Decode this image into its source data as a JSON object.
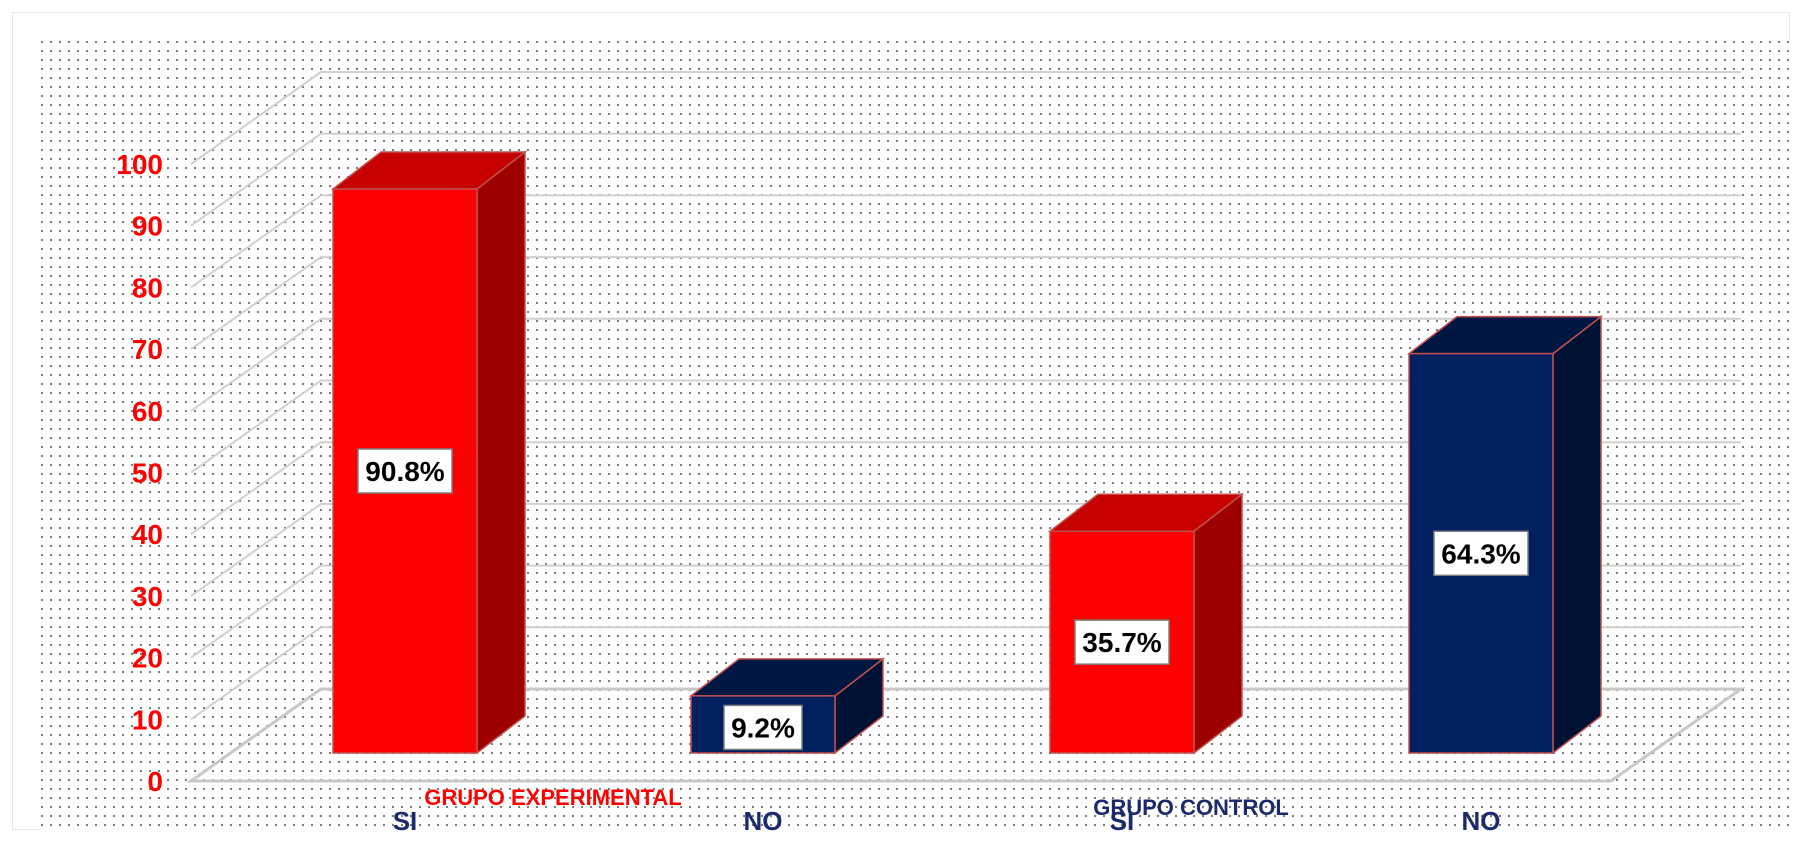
{
  "chart_data": {
    "type": "bar",
    "categories": [
      "SI",
      "NO",
      "SI",
      "NO"
    ],
    "groups": [
      {
        "label": "GRUPO EXPERIMENTAL",
        "color": "#ff0000"
      },
      {
        "label": "GRUPO CONTROL",
        "color": "#1a2a6c"
      }
    ],
    "values": [
      90.8,
      9.2,
      35.7,
      64.3
    ],
    "data_labels": [
      "90.8%",
      "9.2%",
      "35.7%",
      "64.3%"
    ],
    "bar_colors": [
      "#ff0000",
      "#00205f",
      "#ff0000",
      "#00205f"
    ],
    "ylim": [
      0,
      100
    ],
    "yticks": [
      0,
      10,
      20,
      30,
      40,
      50,
      60,
      70,
      80,
      90,
      100
    ],
    "grid": true,
    "style": "3d-column"
  }
}
